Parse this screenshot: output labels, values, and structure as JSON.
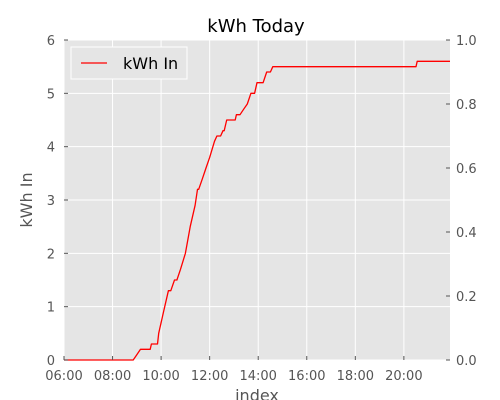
{
  "chart_data": {
    "type": "line",
    "title": "kWh Today",
    "xlabel": "index",
    "ylabel": "kWh In",
    "x_tick_labels": [
      "06:00",
      "08:00",
      "10:00",
      "12:00",
      "14:00",
      "16:00",
      "18:00",
      "20:00"
    ],
    "x_tick_hours": [
      6,
      8,
      10,
      12,
      14,
      16,
      18,
      20
    ],
    "xlim_hours": [
      6,
      21.9
    ],
    "ylim": [
      0,
      6
    ],
    "y_ticks": [
      0,
      1,
      2,
      3,
      4,
      5,
      6
    ],
    "y_tick_labels": [
      "0",
      "1",
      "2",
      "3",
      "4",
      "5",
      "6"
    ],
    "y2lim": [
      0,
      1
    ],
    "y2_ticks": [
      0,
      0.2,
      0.4,
      0.6,
      0.8,
      1.0
    ],
    "y2_tick_labels": [
      "0.0",
      "0.2",
      "0.4",
      "0.6",
      "0.8",
      "1.0"
    ],
    "grid": true,
    "legend_position": "top-left",
    "colors": {
      "line": "#ff0000",
      "plot_background": "#e5e5e5",
      "grid": "#ffffff"
    },
    "series": [
      {
        "name": "kWh In",
        "x_hours": [
          6.0,
          8.85,
          9.0,
          9.15,
          9.55,
          9.6,
          9.85,
          9.9,
          10.1,
          10.3,
          10.4,
          10.55,
          10.65,
          10.8,
          11.0,
          11.2,
          11.4,
          11.5,
          11.55,
          11.7,
          11.85,
          12.0,
          12.2,
          12.3,
          12.45,
          12.55,
          12.6,
          12.7,
          13.05,
          13.1,
          13.25,
          13.4,
          13.55,
          13.7,
          13.85,
          13.95,
          14.2,
          14.35,
          14.5,
          14.6,
          14.65,
          20.5,
          20.55,
          21.9
        ],
        "values": [
          0.0,
          0.0,
          0.1,
          0.2,
          0.2,
          0.3,
          0.3,
          0.5,
          0.9,
          1.3,
          1.3,
          1.5,
          1.5,
          1.7,
          2.0,
          2.5,
          2.9,
          3.2,
          3.2,
          3.4,
          3.6,
          3.8,
          4.1,
          4.2,
          4.2,
          4.3,
          4.3,
          4.5,
          4.5,
          4.6,
          4.6,
          4.7,
          4.8,
          5.0,
          5.0,
          5.2,
          5.2,
          5.4,
          5.4,
          5.5,
          5.5,
          5.5,
          5.6,
          5.6
        ]
      }
    ]
  }
}
